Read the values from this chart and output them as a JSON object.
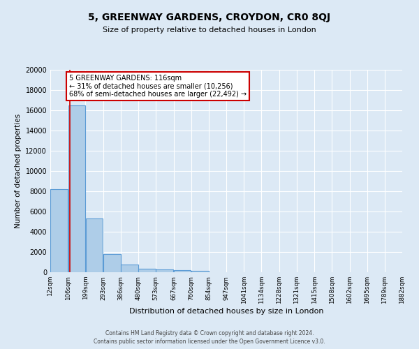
{
  "title": "5, GREENWAY GARDENS, CROYDON, CR0 8QJ",
  "subtitle": "Size of property relative to detached houses in London",
  "xlabel": "Distribution of detached houses by size in London",
  "ylabel": "Number of detached properties",
  "bin_edges": [
    12,
    106,
    199,
    293,
    386,
    480,
    573,
    667,
    760,
    854,
    947,
    1041,
    1134,
    1228,
    1321,
    1415,
    1508,
    1602,
    1695,
    1789,
    1882
  ],
  "bin_labels": [
    "12sqm",
    "106sqm",
    "199sqm",
    "293sqm",
    "386sqm",
    "480sqm",
    "573sqm",
    "667sqm",
    "760sqm",
    "854sqm",
    "947sqm",
    "1041sqm",
    "1134sqm",
    "1228sqm",
    "1321sqm",
    "1415sqm",
    "1508sqm",
    "1602sqm",
    "1695sqm",
    "1789sqm",
    "1882sqm"
  ],
  "bar_heights": [
    8200,
    16500,
    5300,
    1800,
    750,
    350,
    250,
    200,
    150,
    0,
    0,
    0,
    0,
    0,
    0,
    0,
    0,
    0,
    0,
    0
  ],
  "bar_color": "#aecde8",
  "bar_edge_color": "#5b9bd5",
  "property_value": 116,
  "vline_color": "#cc0000",
  "annotation_line1": "5 GREENWAY GARDENS: 116sqm",
  "annotation_line2": "← 31% of detached houses are smaller (10,256)",
  "annotation_line3": "68% of semi-detached houses are larger (22,492) →",
  "annotation_box_color": "#ffffff",
  "annotation_box_edge": "#cc0000",
  "ylim": [
    0,
    20000
  ],
  "yticks": [
    0,
    2000,
    4000,
    6000,
    8000,
    10000,
    12000,
    14000,
    16000,
    18000,
    20000
  ],
  "background_color": "#dce9f5",
  "grid_color": "#ffffff",
  "footer_line1": "Contains HM Land Registry data © Crown copyright and database right 2024.",
  "footer_line2": "Contains public sector information licensed under the Open Government Licence v3.0."
}
